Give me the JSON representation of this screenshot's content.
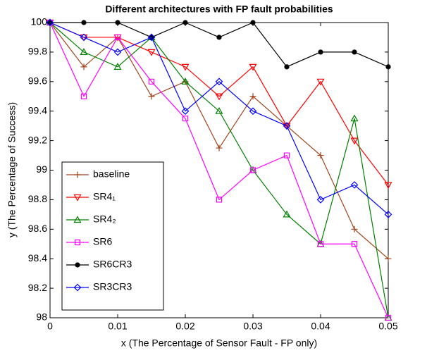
{
  "chart_data": {
    "type": "line",
    "title": "Different architectures with FP fault probabilities",
    "xlabel": "x (The Percentage of Sensor Fault - FP only)",
    "ylabel": "y (The Percentage of Success)",
    "x": [
      0,
      0.005,
      0.01,
      0.015,
      0.02,
      0.025,
      0.03,
      0.035,
      0.04,
      0.045,
      0.05
    ],
    "xlim": [
      0,
      0.05
    ],
    "xticks": [
      0,
      0.01,
      0.02,
      0.03,
      0.04,
      0.05
    ],
    "ylim": [
      98,
      100
    ],
    "yticks": [
      98,
      98.2,
      98.4,
      98.6,
      98.8,
      99,
      99.2,
      99.4,
      99.6,
      99.8,
      100
    ],
    "legend": "lower left",
    "series": [
      {
        "name": "baseline",
        "color": "#a0461e",
        "marker": "plus",
        "values": [
          100,
          99.7,
          99.9,
          99.5,
          99.6,
          99.15,
          99.5,
          99.3,
          99.1,
          98.6,
          98.4
        ]
      },
      {
        "name": "SR4₁",
        "color": "#ff0000",
        "marker": "triangle-down",
        "values": [
          100,
          99.9,
          99.9,
          99.8,
          99.7,
          99.5,
          99.7,
          99.3,
          99.6,
          99.2,
          98.9
        ]
      },
      {
        "name": "SR4₂",
        "color": "#008000",
        "marker": "triangle-up",
        "values": [
          100,
          99.8,
          99.7,
          99.9,
          99.6,
          99.4,
          99.0,
          98.7,
          98.5,
          99.35,
          98.0
        ]
      },
      {
        "name": "SR6",
        "color": "#ff00ff",
        "marker": "square",
        "values": [
          100,
          99.5,
          99.9,
          99.6,
          99.35,
          98.8,
          99.0,
          99.1,
          98.5,
          98.5,
          98.0
        ]
      },
      {
        "name": "SR6CR3",
        "color": "#000000",
        "marker": "circle",
        "values": [
          100,
          100,
          100,
          99.9,
          100,
          99.9,
          100,
          99.7,
          99.8,
          99.8,
          99.7
        ]
      },
      {
        "name": "SR3CR3",
        "color": "#0000ff",
        "marker": "diamond",
        "values": [
          100,
          99.9,
          99.8,
          99.9,
          99.4,
          99.6,
          99.4,
          99.3,
          98.8,
          98.9,
          98.7
        ]
      }
    ]
  }
}
